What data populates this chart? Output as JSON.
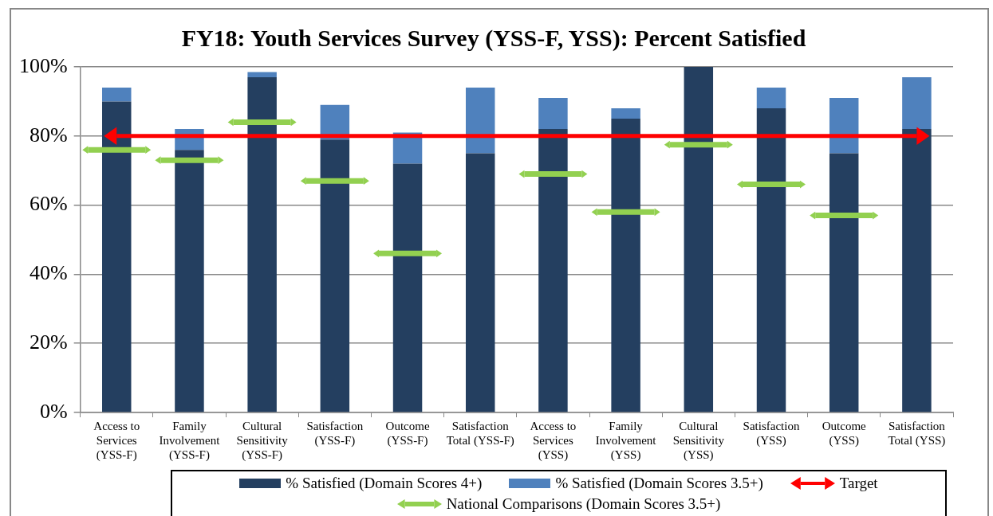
{
  "chart_data": {
    "type": "bar",
    "title": "FY18: Youth Services Survey (YSS-F, YSS): Percent Satisfied",
    "categories": [
      "Access to Services (YSS-F)",
      "Family Involvement (YSS-F)",
      "Cultural Sensitivity (YSS-F)",
      "Satisfaction (YSS-F)",
      "Outcome (YSS-F)",
      "Satisfaction Total (YSS-F)",
      "Access to Services (YSS)",
      "Family Involvement (YSS)",
      "Cultural Sensitivity (YSS)",
      "Satisfaction (YSS)",
      "Outcome (YSS)",
      "Satisfaction Total (YSS)"
    ],
    "stacked": true,
    "series": [
      {
        "name": "% Satisfied (Domain Scores 4+)",
        "color": "#243f60",
        "values": [
          90,
          76,
          97,
          79,
          72,
          75,
          82,
          85,
          100,
          88,
          75,
          82
        ]
      },
      {
        "name": "% Satisfied (Domain Scores 3.5+)",
        "color": "#4f81bd",
        "values": [
          4,
          6,
          1.5,
          10,
          9,
          19,
          9,
          3,
          0,
          6,
          16,
          15
        ]
      },
      {
        "name": "Target",
        "type": "line",
        "color": "#ff0000",
        "values": [
          80,
          80,
          80,
          80,
          80,
          80,
          80,
          80,
          80,
          80,
          80,
          80
        ]
      },
      {
        "name": "National Comparisons (Domain Scores 3.5+)",
        "type": "scatter",
        "color": "#92d050",
        "values": [
          76,
          73,
          84,
          67,
          46,
          null,
          69,
          58,
          77.5,
          66,
          57,
          null
        ]
      }
    ],
    "ylim": [
      0,
      100
    ],
    "yticks": [
      {
        "value": 0,
        "label": "0%"
      },
      {
        "value": 20,
        "label": "20%"
      },
      {
        "value": 40,
        "label": "40%"
      },
      {
        "value": 60,
        "label": "60%"
      },
      {
        "value": 80,
        "label": "80%"
      },
      {
        "value": 100,
        "label": "100%"
      }
    ],
    "grid": "y",
    "legend": "bottom"
  }
}
